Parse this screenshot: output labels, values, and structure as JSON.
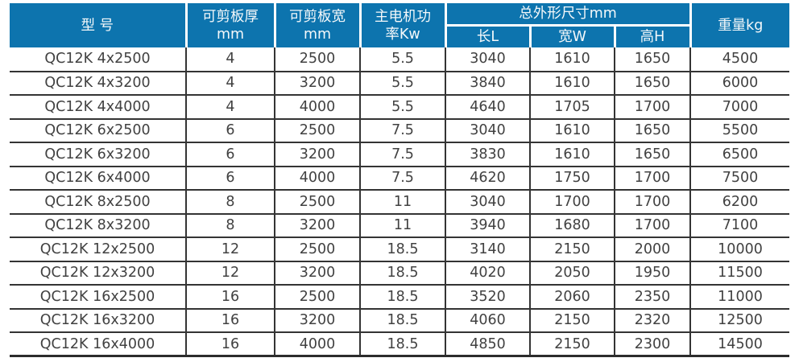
{
  "theme": {
    "header_bg": "#0d74ae",
    "header_text": "#f4f8fa",
    "body_text": "#414141",
    "border_color": "#343434",
    "page_bg": "#ffffff"
  },
  "table": {
    "header": {
      "model": "型 号",
      "cut_thickness": "可剪板厚\nmm",
      "cut_width": "可剪板宽\nmm",
      "motor_power": "主电机功\n率Kw",
      "overall_dims": "总外形尺寸mm",
      "length": "长L",
      "width": "宽W",
      "height": "高H",
      "weight": "重量kg"
    },
    "rows": [
      [
        "QC12K 4x2500",
        "4",
        "2500",
        "5.5",
        "3040",
        "1610",
        "1650",
        "4500"
      ],
      [
        "QC12K 4x3200",
        "4",
        "3200",
        "5.5",
        "3840",
        "1610",
        "1650",
        "6000"
      ],
      [
        "QC12K 4x4000",
        "4",
        "4000",
        "5.5",
        "4640",
        "1705",
        "1700",
        "7000"
      ],
      [
        "QC12K 6x2500",
        "6",
        "2500",
        "7.5",
        "3040",
        "1610",
        "1650",
        "5500"
      ],
      [
        "QC12K 6x3200",
        "6",
        "3200",
        "7.5",
        "3830",
        "1610",
        "1650",
        "6500"
      ],
      [
        "QC12K 6x4000",
        "6",
        "4000",
        "7.5",
        "4620",
        "1750",
        "1700",
        "7500"
      ],
      [
        "QC12K 8x2500",
        "8",
        "2500",
        "11",
        "3040",
        "1700",
        "1700",
        "6200"
      ],
      [
        "QC12K 8x3200",
        "8",
        "3200",
        "11",
        "3940",
        "1680",
        "1700",
        "7100"
      ],
      [
        "QC12K 12x2500",
        "12",
        "2500",
        "18.5",
        "3140",
        "2150",
        "2000",
        "10000"
      ],
      [
        "QC12K 12x3200",
        "12",
        "3200",
        "18.5",
        "4020",
        "2050",
        "1950",
        "11500"
      ],
      [
        "QC12K 16x2500",
        "16",
        "2500",
        "18.5",
        "3520",
        "2060",
        "2350",
        "11000"
      ],
      [
        "QC12K 16x3200",
        "16",
        "3200",
        "18.5",
        "4060",
        "2150",
        "2320",
        "12500"
      ],
      [
        "QC12K 16x4000",
        "16",
        "4000",
        "18.5",
        "4850",
        "2150",
        "2300",
        "14500"
      ]
    ]
  }
}
